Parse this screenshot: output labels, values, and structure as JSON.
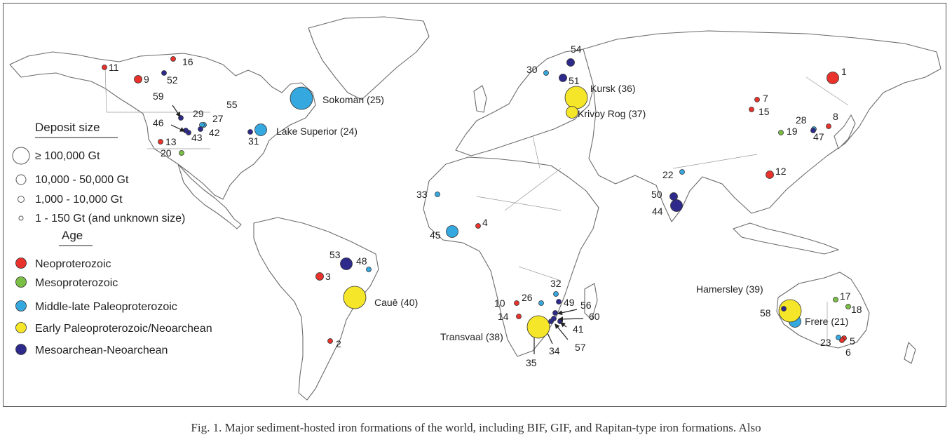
{
  "colors": {
    "Neoproterozoic": "#e8322b",
    "Mesoproterozoic": "#7bbf44",
    "Middle-late Paleoproterozoic": "#36a8e0",
    "Early Paleoproterozoic/Neoarchean": "#f5e62a",
    "Mesoarchean-Neoarchean": "#2e2a8c"
  },
  "legend": {
    "size_title": "Deposit size",
    "sizes": [
      "≥ 100,000 Gt",
      "10,000 - 50,000 Gt",
      "1,000 - 10,000 Gt",
      "1 - 150 Gt (and unknown size)"
    ],
    "age_title": "Age",
    "ages": [
      "Neoproterozoic",
      "Mesoproterozoic",
      "Middle-late Paleoproterozoic",
      "Early Paleoproterozoic/Neoarchean",
      "Mesoarchean-Neoarchean"
    ]
  },
  "deposits": [
    {
      "label": "1",
      "age": "Neoproterozoic",
      "size": 3
    },
    {
      "label": "2",
      "age": "Neoproterozoic",
      "size": 1
    },
    {
      "label": "3",
      "age": "Neoproterozoic",
      "size": 2
    },
    {
      "label": "4",
      "age": "Neoproterozoic",
      "size": 1
    },
    {
      "label": "5",
      "age": "Neoproterozoic",
      "size": 1
    },
    {
      "label": "6",
      "age": "Neoproterozoic",
      "size": 1
    },
    {
      "label": "7",
      "age": "Neoproterozoic",
      "size": 1
    },
    {
      "label": "8",
      "age": "Neoproterozoic",
      "size": 1
    },
    {
      "label": "9",
      "age": "Neoproterozoic",
      "size": 2
    },
    {
      "label": "10",
      "age": "Neoproterozoic",
      "size": 1
    },
    {
      "label": "11",
      "age": "Neoproterozoic",
      "size": 1
    },
    {
      "label": "12",
      "age": "Neoproterozoic",
      "size": 2
    },
    {
      "label": "13",
      "age": "Neoproterozoic",
      "size": 1
    },
    {
      "label": "14",
      "age": "Neoproterozoic",
      "size": 1
    },
    {
      "label": "15",
      "age": "Neoproterozoic",
      "size": 1
    },
    {
      "label": "16",
      "age": "Neoproterozoic",
      "size": 1
    },
    {
      "label": "17",
      "age": "Mesoproterozoic",
      "size": 1
    },
    {
      "label": "18",
      "age": "Mesoproterozoic",
      "size": 1
    },
    {
      "label": "19",
      "age": "Mesoproterozoic",
      "size": 1
    },
    {
      "label": "20",
      "age": "Mesoproterozoic",
      "size": 1
    },
    {
      "label": "Frere (21)",
      "age": "Middle-late Paleoproterozoic",
      "size": 3
    },
    {
      "label": "22",
      "age": "Middle-late Paleoproterozoic",
      "size": 1
    },
    {
      "label": "23",
      "age": "Middle-late Paleoproterozoic",
      "size": 1
    },
    {
      "label": "Lake Superior (24)",
      "age": "Middle-late Paleoproterozoic",
      "size": 3
    },
    {
      "label": "Sokoman (25)",
      "age": "Middle-late Paleoproterozoic",
      "size": 5
    },
    {
      "label": "26",
      "age": "Middle-late Paleoproterozoic",
      "size": 1
    },
    {
      "label": "27",
      "age": "Middle-late Paleoproterozoic",
      "size": 1
    },
    {
      "label": "28",
      "age": "Middle-late Paleoproterozoic",
      "size": 1
    },
    {
      "label": "29",
      "age": "Middle-late Paleoproterozoic",
      "size": 1
    },
    {
      "label": "30",
      "age": "Middle-late Paleoproterozoic",
      "size": 1
    },
    {
      "label": "31",
      "age": "Mesoarchean-Neoarchean",
      "size": 1
    },
    {
      "label": "32",
      "age": "Middle-late Paleoproterozoic",
      "size": 1
    },
    {
      "label": "33",
      "age": "Middle-late Paleoproterozoic",
      "size": 1
    },
    {
      "label": "34",
      "age": "Middle-late Paleoproterozoic",
      "size": 1
    },
    {
      "label": "35",
      "age": "Middle-late Paleoproterozoic",
      "size": 1
    },
    {
      "label": "Kursk (36)",
      "age": "Early Paleoproterozoic/Neoarchean",
      "size": 5
    },
    {
      "label": "Krivoy Rog (37)",
      "age": "Early Paleoproterozoic/Neoarchean",
      "size": 3
    },
    {
      "label": "Transvaal (38)",
      "age": "Early Paleoproterozoic/Neoarchean",
      "size": 5
    },
    {
      "label": "Hamersley (39)",
      "age": "Early Paleoproterozoic/Neoarchean",
      "size": 5
    },
    {
      "label": "Cauê (40)",
      "age": "Early Paleoproterozoic/Neoarchean",
      "size": 5
    },
    {
      "label": "41",
      "age": "Mesoarchean-Neoarchean",
      "size": 1
    },
    {
      "label": "42",
      "age": "Mesoarchean-Neoarchean",
      "size": 1
    },
    {
      "label": "43",
      "age": "Mesoarchean-Neoarchean",
      "size": 1
    },
    {
      "label": "44",
      "age": "Mesoarchean-Neoarchean",
      "size": 3
    },
    {
      "label": "45",
      "age": "Middle-late Paleoproterozoic",
      "size": 3
    },
    {
      "label": "46",
      "age": "Mesoarchean-Neoarchean",
      "size": 1
    },
    {
      "label": "47",
      "age": "Mesoarchean-Neoarchean",
      "size": 1
    },
    {
      "label": "48",
      "age": "Middle-late Paleoproterozoic",
      "size": 1
    },
    {
      "label": "49",
      "age": "Mesoarchean-Neoarchean",
      "size": 1
    },
    {
      "label": "50",
      "age": "Mesoarchean-Neoarchean",
      "size": 2
    },
    {
      "label": "51",
      "age": "Mesoarchean-Neoarchean",
      "size": 2
    },
    {
      "label": "52",
      "age": "Mesoarchean-Neoarchean",
      "size": 1
    },
    {
      "label": "53",
      "age": "Mesoarchean-Neoarchean",
      "size": 3
    },
    {
      "label": "54",
      "age": "Mesoarchean-Neoarchean",
      "size": 2
    },
    {
      "label": "55",
      "age": "Mesoarchean-Neoarchean",
      "size": 0
    },
    {
      "label": "56",
      "age": "Mesoarchean-Neoarchean",
      "size": 1
    },
    {
      "label": "57",
      "age": "Mesoarchean-Neoarchean",
      "size": 1
    },
    {
      "label": "58",
      "age": "Mesoarchean-Neoarchean",
      "size": 1
    },
    {
      "label": "59",
      "age": "Mesoarchean-Neoarchean",
      "size": 1
    },
    {
      "label": "60",
      "age": "Mesoarchean-Neoarchean",
      "size": 1
    }
  ],
  "caption": "Fig. 1. Major sediment-hosted iron formations of the world, including BIF, GIF, and Rapitan-type iron formations. Also"
}
